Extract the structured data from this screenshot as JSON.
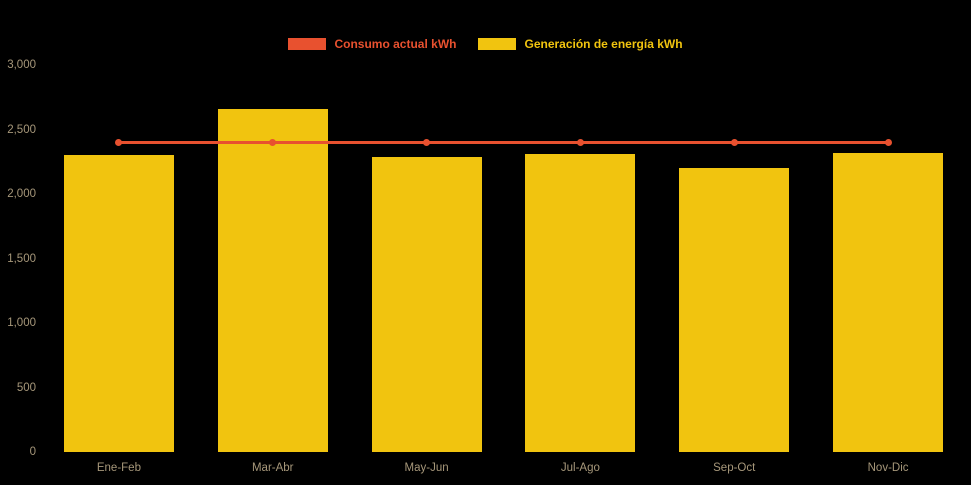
{
  "chart_data": {
    "type": "bar",
    "categories": [
      "Ene-Feb",
      "Mar-Abr",
      "May-Jun",
      "Jul-Ago",
      "Sep-Oct",
      "Nov-Dic"
    ],
    "series": [
      {
        "name": "Consumo actual kWh",
        "type": "line",
        "color": "#e8512f",
        "values": [
          2400,
          2400,
          2400,
          2400,
          2400,
          2400
        ]
      },
      {
        "name": "Generación de energía kWh",
        "type": "bar",
        "color": "#f1c40f",
        "values": [
          2300,
          2660,
          2290,
          2310,
          2200,
          2320
        ]
      }
    ],
    "ylabel": "",
    "xlabel": "",
    "ylim": [
      0,
      3000
    ],
    "yticks": [
      0,
      500,
      1000,
      1500,
      2000,
      2500,
      3000
    ],
    "ytick_labels": [
      "0",
      "500",
      "1,000",
      "1,500",
      "2,000",
      "2,500",
      "3,000"
    ],
    "legend_position": "top",
    "grid": false,
    "background": "#000000",
    "tick_color": "#a6977a"
  },
  "legend": {
    "items": [
      {
        "label": "Consumo actual kWh",
        "color": "#e8512f"
      },
      {
        "label": "Generación de energía kWh",
        "color": "#f1c40f"
      }
    ]
  }
}
